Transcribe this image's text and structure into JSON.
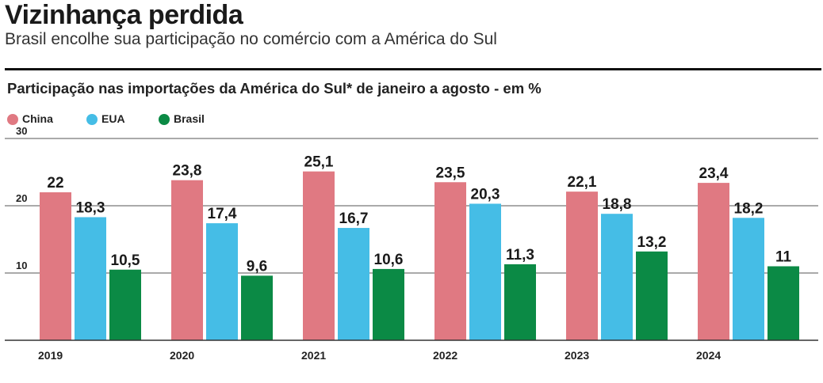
{
  "header": {
    "title": "Vizinhança perdida",
    "subtitle": "Brasil encolhe sua participação no comércio com a América do Sul"
  },
  "colors": {
    "china": "#e07982",
    "eua": "#45bde6",
    "brasil": "#0b8a45",
    "rule": "#111111",
    "gridline": "#555555"
  },
  "chart_data": {
    "type": "bar",
    "title": "Participação nas importações da América do Sul* de janeiro a agosto - em %",
    "categories": [
      "2019",
      "2020",
      "2021",
      "2022",
      "2023",
      "2024"
    ],
    "series": [
      {
        "name": "China",
        "color": "#e07982",
        "values": [
          22,
          23.8,
          25.1,
          23.5,
          22.1,
          23.4
        ],
        "labels": [
          "22",
          "23,8",
          "25,1",
          "23,5",
          "22,1",
          "23,4"
        ]
      },
      {
        "name": "EUA",
        "color": "#45bde6",
        "values": [
          18.3,
          17.4,
          16.7,
          20.3,
          18.8,
          18.2
        ],
        "labels": [
          "18,3",
          "17,4",
          "16,7",
          "20,3",
          "18,8",
          "18,2"
        ]
      },
      {
        "name": "Brasil",
        "color": "#0b8a45",
        "values": [
          10.5,
          9.6,
          10.6,
          11.3,
          13.2,
          11
        ],
        "labels": [
          "10,5",
          "9,6",
          "10,6",
          "11,3",
          "13,2",
          "11"
        ]
      }
    ],
    "yticks": [
      "10",
      "20",
      "30"
    ],
    "ylim": [
      0,
      30
    ],
    "grid": true,
    "legend_position": "top-left",
    "xlabel": "",
    "ylabel": ""
  }
}
